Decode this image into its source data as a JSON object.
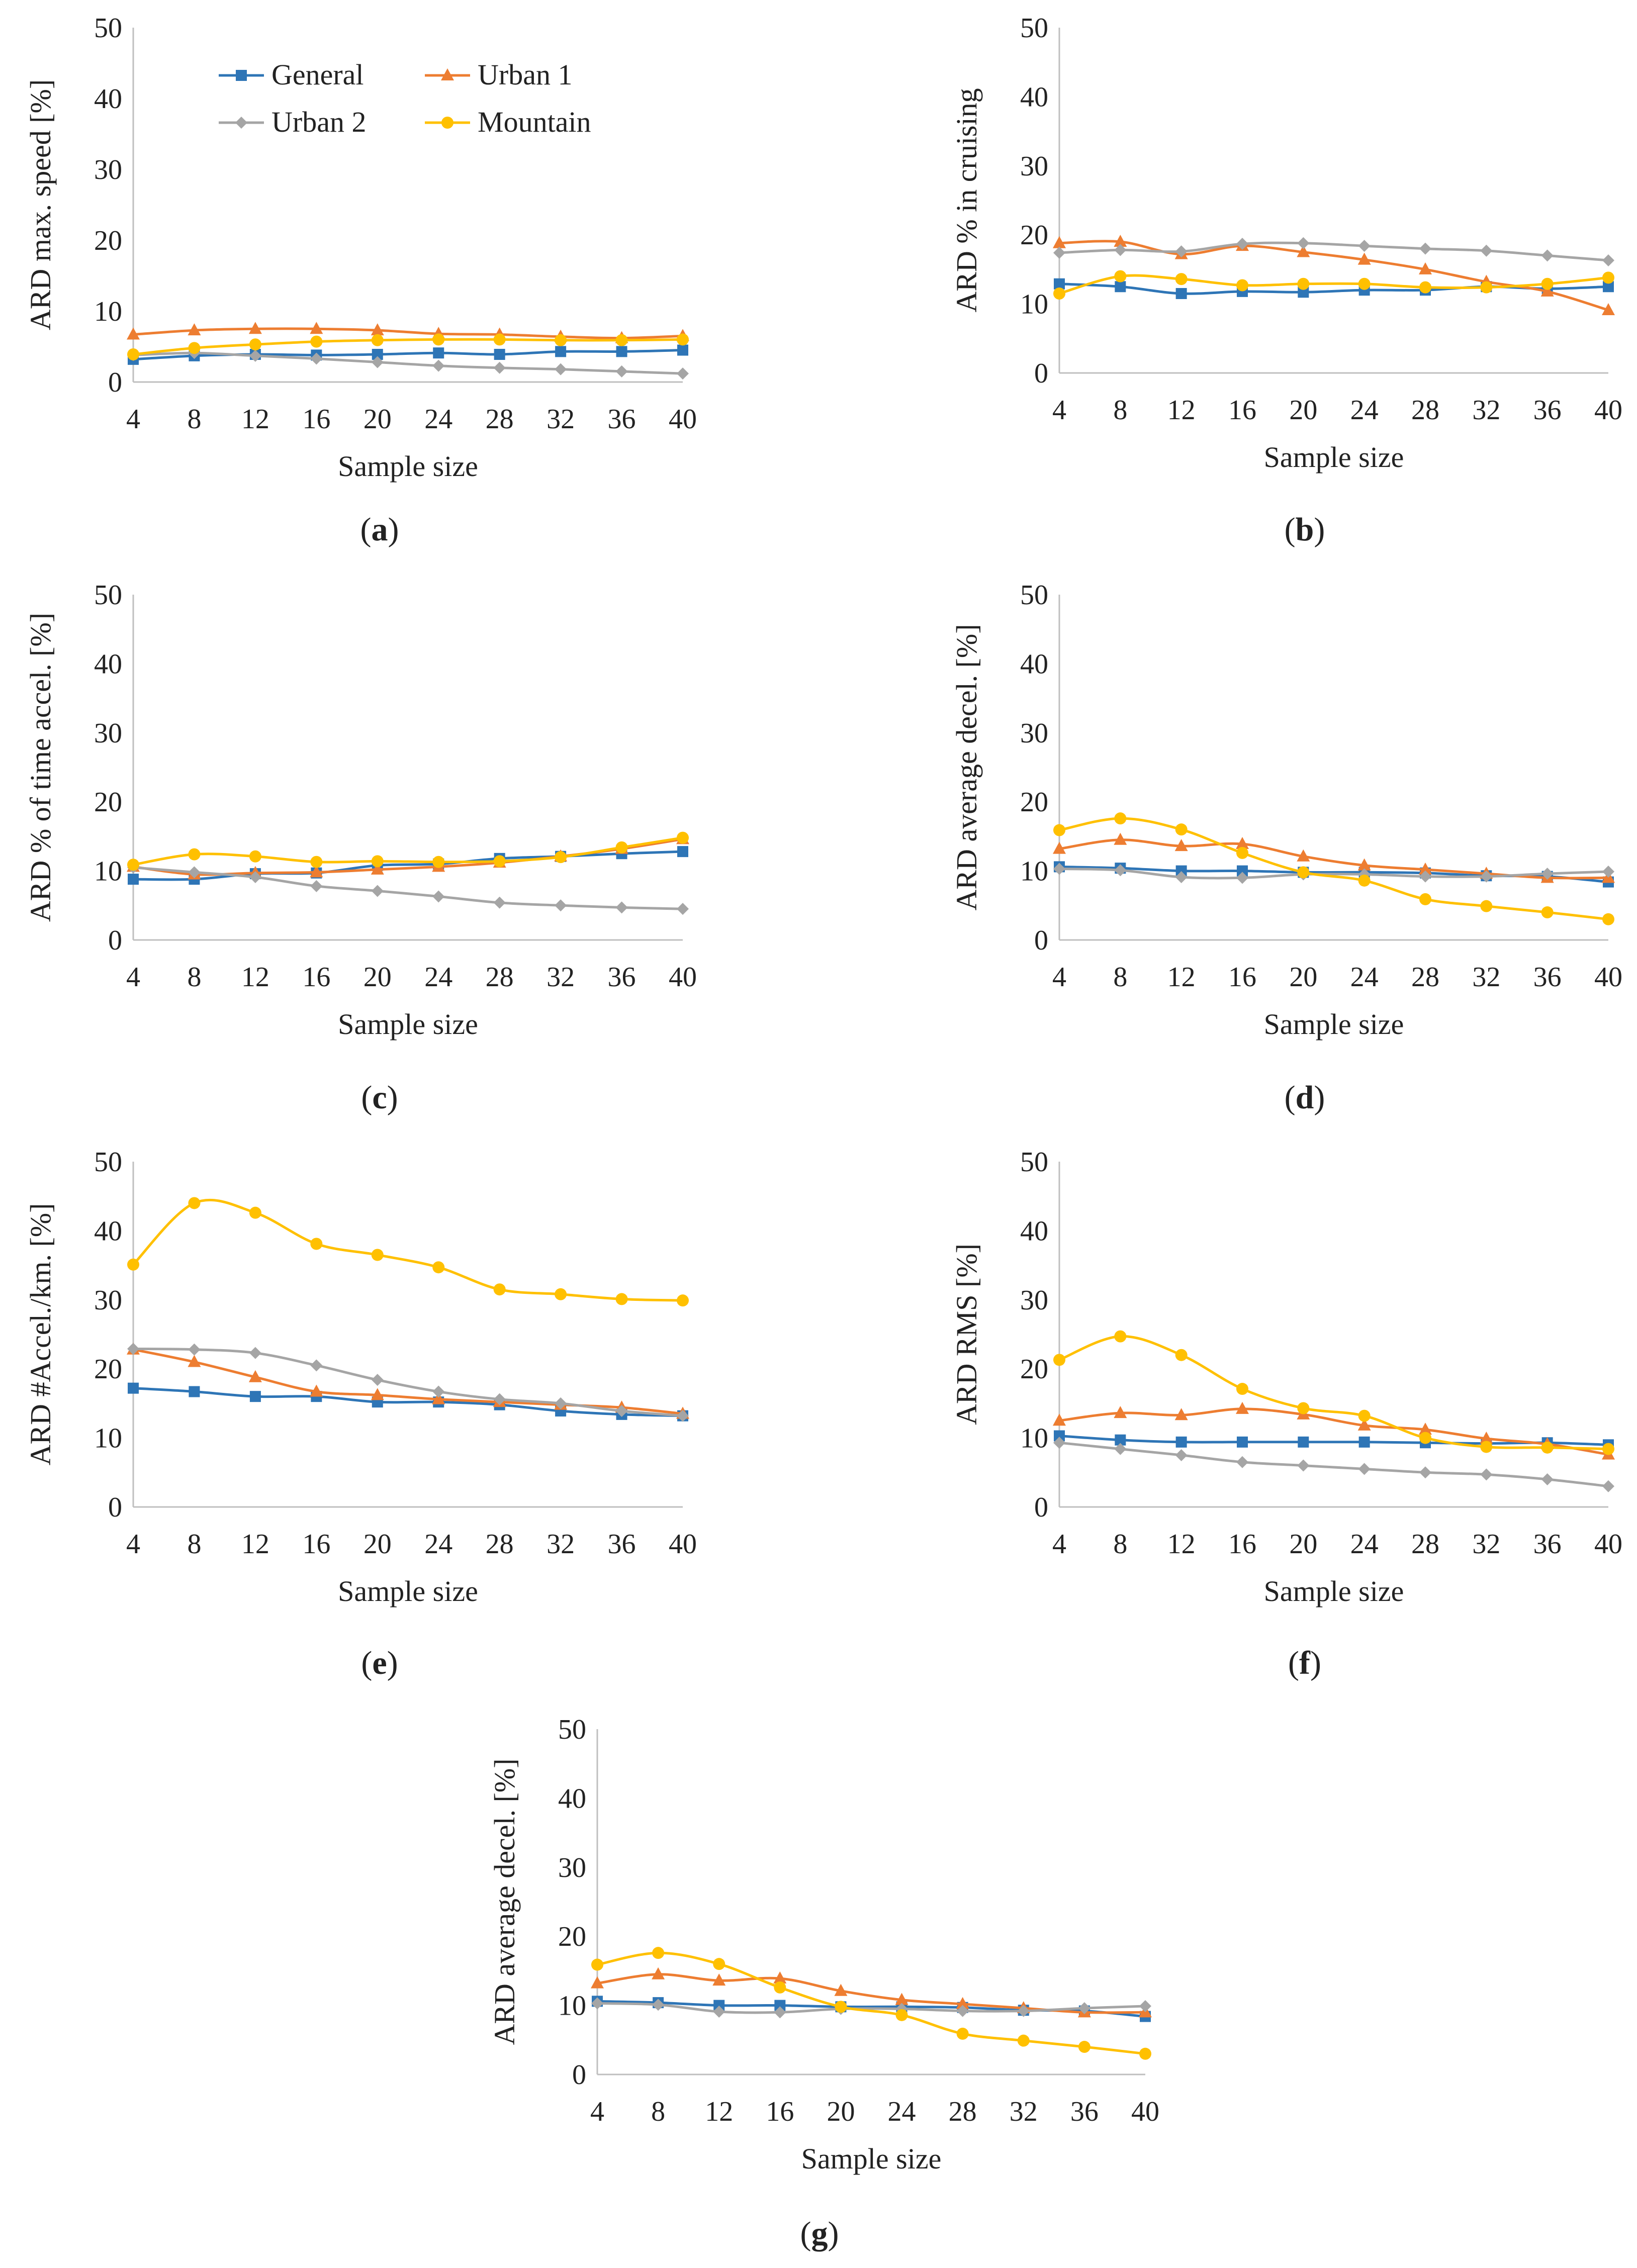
{
  "figure": {
    "series_colors": {
      "General": "#2E75B6",
      "Urban 1": "#ED7D31",
      "Urban 2": "#A5A5A5",
      "Mountain": "#FFC000"
    },
    "markers": {
      "General": "square",
      "Urban 1": "triangle",
      "Urban 2": "diamond",
      "Mountain": "circle"
    },
    "legend": {
      "entries": [
        "General",
        "Urban 1",
        "Urban 2",
        "Mountain"
      ]
    }
  },
  "chart_data": [
    {
      "panel": "a",
      "type": "line",
      "title": "",
      "xlabel": "Sample size",
      "ylabel": "ARD max. speed [%]",
      "x": [
        4,
        8,
        12,
        16,
        20,
        24,
        28,
        32,
        36,
        40
      ],
      "ylim": [
        0,
        50
      ],
      "yticks": [
        0,
        10,
        20,
        30,
        40,
        50
      ],
      "legend_position": "top-left",
      "series": [
        {
          "name": "General",
          "values": [
            3.2,
            3.7,
            3.9,
            3.8,
            3.9,
            4.1,
            3.9,
            4.3,
            4.3,
            4.5
          ]
        },
        {
          "name": "Urban 1",
          "values": [
            6.7,
            7.3,
            7.5,
            7.5,
            7.3,
            6.8,
            6.7,
            6.4,
            6.2,
            6.5
          ]
        },
        {
          "name": "Urban 2",
          "values": [
            3.8,
            4.1,
            3.7,
            3.3,
            2.8,
            2.3,
            2.0,
            1.8,
            1.5,
            1.2
          ]
        },
        {
          "name": "Mountain",
          "values": [
            3.9,
            4.8,
            5.3,
            5.7,
            5.9,
            6.0,
            6.0,
            5.9,
            5.9,
            6.0
          ]
        }
      ]
    },
    {
      "panel": "b",
      "type": "line",
      "title": "",
      "xlabel": "Sample size",
      "ylabel": "ARD % in cruising",
      "x": [
        4,
        8,
        12,
        16,
        20,
        24,
        28,
        32,
        36,
        40
      ],
      "ylim": [
        0,
        50
      ],
      "yticks": [
        0,
        10,
        20,
        30,
        40,
        50
      ],
      "series": [
        {
          "name": "General",
          "values": [
            12.9,
            12.5,
            11.5,
            11.8,
            11.7,
            12.0,
            12.0,
            12.5,
            12.2,
            12.5
          ]
        },
        {
          "name": "Urban 1",
          "values": [
            18.8,
            19.0,
            17.2,
            18.4,
            17.5,
            16.4,
            15.0,
            13.2,
            11.8,
            9.1
          ]
        },
        {
          "name": "Urban 2",
          "values": [
            17.4,
            17.8,
            17.6,
            18.7,
            18.8,
            18.4,
            18.0,
            17.7,
            17.0,
            16.3
          ]
        },
        {
          "name": "Mountain",
          "values": [
            11.5,
            14.0,
            13.6,
            12.7,
            12.9,
            12.9,
            12.4,
            12.4,
            12.9,
            13.8
          ]
        }
      ]
    },
    {
      "panel": "c",
      "type": "line",
      "title": "",
      "xlabel": "Sample size",
      "ylabel": "ARD % of time accel. [%]",
      "x": [
        4,
        8,
        12,
        16,
        20,
        24,
        28,
        32,
        36,
        40
      ],
      "ylim": [
        0,
        50
      ],
      "yticks": [
        0,
        10,
        20,
        30,
        40,
        50
      ],
      "series": [
        {
          "name": "General",
          "values": [
            8.8,
            8.8,
            9.6,
            9.7,
            10.8,
            11.0,
            11.8,
            12.1,
            12.5,
            12.8
          ]
        },
        {
          "name": "Urban 1",
          "values": [
            10.6,
            9.5,
            9.7,
            9.8,
            10.2,
            10.6,
            11.2,
            12.1,
            13.2,
            14.6
          ]
        },
        {
          "name": "Urban 2",
          "values": [
            10.5,
            9.8,
            9.1,
            7.8,
            7.1,
            6.3,
            5.4,
            5.0,
            4.7,
            4.5
          ]
        },
        {
          "name": "Mountain",
          "values": [
            10.9,
            12.4,
            12.1,
            11.3,
            11.4,
            11.3,
            11.4,
            12.0,
            13.4,
            14.8
          ]
        }
      ]
    },
    {
      "panel": "d",
      "type": "line",
      "title": "",
      "xlabel": "Sample size",
      "ylabel": "ARD average decel. [%]",
      "x": [
        4,
        8,
        12,
        16,
        20,
        24,
        28,
        32,
        36,
        40
      ],
      "ylim": [
        0,
        50
      ],
      "yticks": [
        0,
        10,
        20,
        30,
        40,
        50
      ],
      "series": [
        {
          "name": "General",
          "values": [
            10.6,
            10.4,
            10.0,
            10.0,
            9.8,
            9.8,
            9.7,
            9.3,
            9.2,
            8.4
          ]
        },
        {
          "name": "Urban 1",
          "values": [
            13.2,
            14.5,
            13.6,
            13.9,
            12.1,
            10.8,
            10.2,
            9.6,
            9.0,
            9.0
          ]
        },
        {
          "name": "Urban 2",
          "values": [
            10.3,
            10.1,
            9.1,
            9.0,
            9.5,
            9.5,
            9.2,
            9.2,
            9.6,
            9.9
          ]
        },
        {
          "name": "Mountain",
          "values": [
            15.9,
            17.6,
            16.0,
            12.6,
            9.8,
            8.6,
            5.9,
            4.9,
            4.0,
            3.0
          ]
        }
      ]
    },
    {
      "panel": "e",
      "type": "line",
      "title": "",
      "xlabel": "Sample size",
      "ylabel": "ARD #Accel./km. [%]",
      "x": [
        4,
        8,
        12,
        16,
        20,
        24,
        28,
        32,
        36,
        40
      ],
      "ylim": [
        0,
        50
      ],
      "yticks": [
        0,
        10,
        20,
        30,
        40,
        50
      ],
      "series": [
        {
          "name": "General",
          "values": [
            17.2,
            16.7,
            16.0,
            16.0,
            15.2,
            15.2,
            14.8,
            13.9,
            13.4,
            13.2
          ]
        },
        {
          "name": "Urban 1",
          "values": [
            22.8,
            21.0,
            18.8,
            16.7,
            16.2,
            15.6,
            15.2,
            14.8,
            14.4,
            13.5
          ]
        },
        {
          "name": "Urban 2",
          "values": [
            22.9,
            22.8,
            22.3,
            20.5,
            18.4,
            16.7,
            15.6,
            15.0,
            13.9,
            13.2
          ]
        },
        {
          "name": "Mountain",
          "values": [
            35.1,
            44.0,
            42.6,
            38.1,
            36.5,
            34.7,
            31.5,
            30.8,
            30.1,
            29.9
          ]
        }
      ]
    },
    {
      "panel": "f",
      "type": "line",
      "title": "",
      "xlabel": "Sample size",
      "ylabel": "ARD RMS [%]",
      "x": [
        4,
        8,
        12,
        16,
        20,
        24,
        28,
        32,
        36,
        40
      ],
      "ylim": [
        0,
        50
      ],
      "yticks": [
        0,
        10,
        20,
        30,
        40,
        50
      ],
      "series": [
        {
          "name": "General",
          "values": [
            10.3,
            9.7,
            9.4,
            9.4,
            9.4,
            9.4,
            9.3,
            9.2,
            9.3,
            9.0
          ]
        },
        {
          "name": "Urban 1",
          "values": [
            12.5,
            13.6,
            13.3,
            14.2,
            13.4,
            11.8,
            11.2,
            9.9,
            9.1,
            7.6
          ]
        },
        {
          "name": "Urban 2",
          "values": [
            9.3,
            8.4,
            7.5,
            6.5,
            6.0,
            5.5,
            5.0,
            4.7,
            4.0,
            3.0
          ]
        },
        {
          "name": "Mountain",
          "values": [
            21.3,
            24.7,
            22.0,
            17.1,
            14.3,
            13.2,
            10.0,
            8.7,
            8.6,
            8.4
          ]
        }
      ]
    },
    {
      "panel": "g",
      "type": "line",
      "title": "",
      "xlabel": "Sample size",
      "ylabel": "ARD average decel. [%]",
      "x": [
        4,
        8,
        12,
        16,
        20,
        24,
        28,
        32,
        36,
        40
      ],
      "ylim": [
        0,
        50
      ],
      "yticks": [
        0,
        10,
        20,
        30,
        40,
        50
      ],
      "series": [
        {
          "name": "General",
          "values": [
            10.6,
            10.4,
            10.0,
            10.0,
            9.8,
            9.8,
            9.7,
            9.3,
            9.2,
            8.4
          ]
        },
        {
          "name": "Urban 1",
          "values": [
            13.2,
            14.5,
            13.6,
            13.9,
            12.1,
            10.8,
            10.2,
            9.6,
            9.0,
            9.0
          ]
        },
        {
          "name": "Urban 2",
          "values": [
            10.3,
            10.1,
            9.1,
            9.0,
            9.5,
            9.5,
            9.2,
            9.2,
            9.6,
            9.9
          ]
        },
        {
          "name": "Mountain",
          "values": [
            15.9,
            17.6,
            16.0,
            12.6,
            9.8,
            8.6,
            5.9,
            4.9,
            4.0,
            3.0
          ]
        }
      ]
    }
  ]
}
